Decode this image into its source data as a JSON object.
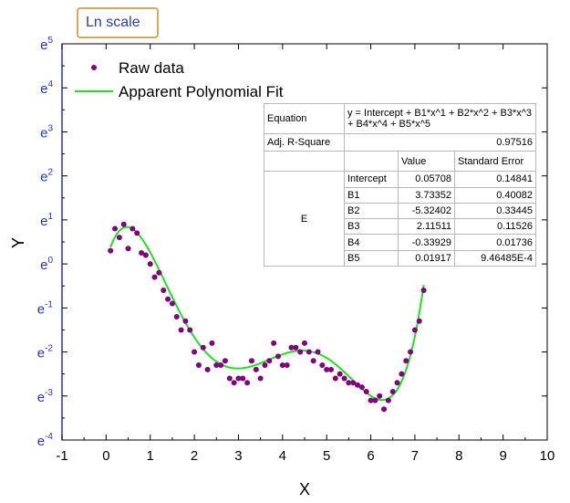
{
  "callout": {
    "text": "Ln scale"
  },
  "chart_data": {
    "type": "scatter",
    "xlabel": "X",
    "ylabel": "Y",
    "xlim": [
      -1,
      10
    ],
    "ylim_exponent": [
      -4,
      5
    ],
    "y_scale": "ln",
    "x_ticks": [
      "-1",
      "0",
      "1",
      "2",
      "3",
      "4",
      "5",
      "6",
      "7",
      "8",
      "9",
      "10"
    ],
    "y_ticks": [
      {
        "base": "e",
        "exp": "-4"
      },
      {
        "base": "e",
        "exp": "-3"
      },
      {
        "base": "e",
        "exp": "-2"
      },
      {
        "base": "e",
        "exp": "-1"
      },
      {
        "base": "e",
        "exp": "0"
      },
      {
        "base": "e",
        "exp": "1"
      },
      {
        "base": "e",
        "exp": "2"
      },
      {
        "base": "e",
        "exp": "3"
      },
      {
        "base": "e",
        "exp": "4"
      },
      {
        "base": "e",
        "exp": "5"
      }
    ],
    "legend_position": "top-left",
    "series": [
      {
        "name": "Raw data",
        "color": "#800080",
        "type": "scatter",
        "x": [
          0.1,
          0.2,
          0.3,
          0.4,
          0.5,
          0.6,
          0.7,
          0.8,
          0.9,
          1.0,
          1.1,
          1.2,
          1.3,
          1.4,
          1.5,
          1.6,
          1.7,
          1.8,
          1.9,
          2.0,
          2.1,
          2.2,
          2.3,
          2.4,
          2.5,
          2.6,
          2.7,
          2.8,
          2.9,
          3.0,
          3.1,
          3.2,
          3.3,
          3.4,
          3.5,
          3.6,
          3.7,
          3.8,
          3.9,
          4.0,
          4.1,
          4.2,
          4.3,
          4.4,
          4.5,
          4.6,
          4.7,
          4.8,
          4.9,
          5.0,
          5.1,
          5.2,
          5.3,
          5.4,
          5.5,
          5.6,
          5.7,
          5.8,
          5.9,
          6.0,
          6.1,
          6.2,
          6.3,
          6.4,
          6.5,
          6.6,
          6.7,
          6.8,
          6.9,
          7.0,
          7.1,
          7.2
        ],
        "y_ln": [
          0.3,
          0.8,
          0.6,
          0.9,
          0.35,
          0.8,
          0.7,
          0.25,
          0.2,
          0.0,
          -0.3,
          -0.2,
          -0.6,
          -0.8,
          -0.9,
          -1.2,
          -1.5,
          -1.3,
          -1.5,
          -2.0,
          -2.3,
          -1.9,
          -2.4,
          -1.8,
          -2.3,
          -2.3,
          -2.2,
          -2.6,
          -2.7,
          -2.6,
          -2.6,
          -2.7,
          -2.2,
          -2.4,
          -2.6,
          -2.3,
          -2.2,
          -1.8,
          -2.1,
          -2.3,
          -2.3,
          -1.9,
          -1.9,
          -2.0,
          -1.8,
          -2.0,
          -2.2,
          -2.0,
          -2.3,
          -2.4,
          -2.4,
          -2.6,
          -2.5,
          -2.6,
          -2.7,
          -2.7,
          -2.75,
          -2.8,
          -2.9,
          -3.1,
          -3.1,
          -3.0,
          -3.3,
          -3.1,
          -2.9,
          -2.7,
          -2.5,
          -2.2,
          -2.0,
          -1.5,
          -1.3,
          -0.6
        ]
      },
      {
        "name": "Apparent Polynomial Fit",
        "color": "#22e022",
        "type": "line"
      }
    ],
    "fit": {
      "equation": "y = Intercept + B1*x^1 + B2*x^2 + B3*x^3 + B4*x^4 + B5*x^5",
      "coefficients": {
        "Intercept": 0.05708,
        "B1": 3.73352,
        "B2": -5.32402,
        "B3": 2.11511,
        "B4": -0.33929,
        "B5": 0.01917
      },
      "x_range": [
        0.1,
        7.2
      ]
    }
  },
  "fit_table": {
    "equation_label": "Equation",
    "equation_text": "y = Intercept + B1*x^1 + B2*x^2 + B3*x^3 + B4*x^4 + B5*x^5",
    "adjr_label": "Adj. R-Square",
    "adjr_value": "0.97516",
    "col_value": "Value",
    "col_se": "Standard Error",
    "group_label": "E",
    "rows": [
      {
        "name": "Intercept",
        "value": "0.05708",
        "se": "0.14841"
      },
      {
        "name": "B1",
        "value": "3.73352",
        "se": "0.40082"
      },
      {
        "name": "B2",
        "value": "-5.32402",
        "se": "0.33445"
      },
      {
        "name": "B3",
        "value": "2.11511",
        "se": "0.11526"
      },
      {
        "name": "B4",
        "value": "-0.33929",
        "se": "0.01736"
      },
      {
        "name": "B5",
        "value": "0.01917",
        "se": "9.46485E-4"
      }
    ]
  }
}
